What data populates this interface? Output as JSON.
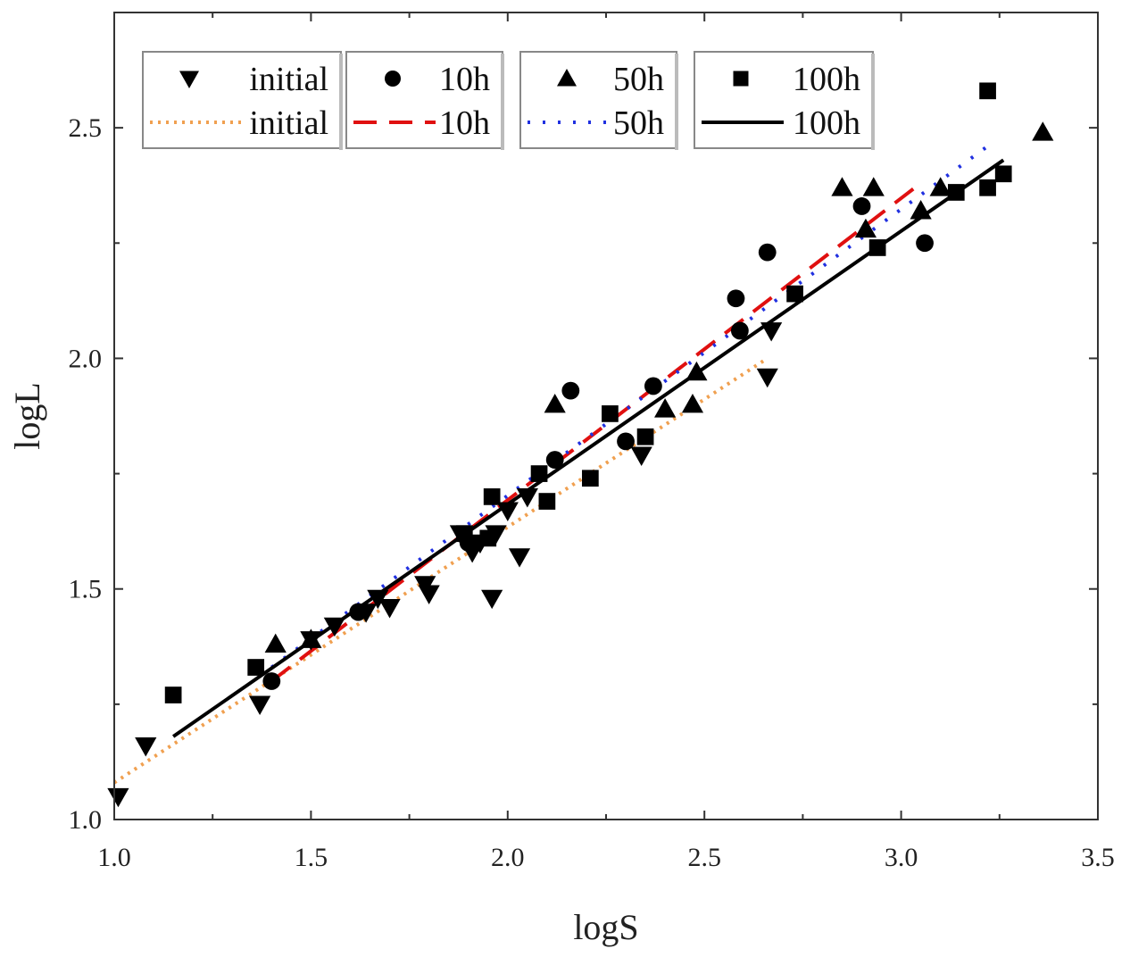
{
  "chart_data": {
    "type": "scatter",
    "title": "",
    "xlabel": "logS",
    "ylabel": "logL",
    "xlim": [
      1.0,
      3.5
    ],
    "ylim": [
      1.0,
      2.75
    ],
    "xticks": [
      "1.0",
      "1.5",
      "2.0",
      "2.5",
      "3.0",
      "3.5"
    ],
    "yticks": [
      "1.0",
      "1.5",
      "2.0",
      "2.5"
    ],
    "xtick_values": [
      1.0,
      1.5,
      2.0,
      2.5,
      3.0,
      3.5
    ],
    "ytick_values": [
      1.0,
      1.5,
      2.0,
      2.5
    ],
    "legend_position": "top",
    "series": [
      {
        "name": "initial",
        "marker": "triangle-down",
        "color": "#000000",
        "fit_label": "initial",
        "fit_color": "#f0a050",
        "fit_style": "dotted",
        "fit_x": [
          1.0,
          2.66
        ],
        "fit_y": [
          1.08,
          2.0
        ],
        "points": [
          [
            1.01,
            1.05
          ],
          [
            1.08,
            1.16
          ],
          [
            1.37,
            1.25
          ],
          [
            1.5,
            1.39
          ],
          [
            1.56,
            1.42
          ],
          [
            1.64,
            1.45
          ],
          [
            1.67,
            1.48
          ],
          [
            1.7,
            1.46
          ],
          [
            1.79,
            1.51
          ],
          [
            1.8,
            1.49
          ],
          [
            1.88,
            1.62
          ],
          [
            1.91,
            1.58
          ],
          [
            1.93,
            1.6
          ],
          [
            1.96,
            1.48
          ],
          [
            1.97,
            1.62
          ],
          [
            2.0,
            1.67
          ],
          [
            2.03,
            1.57
          ],
          [
            2.05,
            1.7
          ],
          [
            2.34,
            1.79
          ],
          [
            2.66,
            1.96
          ],
          [
            2.67,
            2.06
          ]
        ]
      },
      {
        "name": "10h",
        "marker": "circle",
        "color": "#000000",
        "fit_label": "10h",
        "fit_color": "#e01010",
        "fit_style": "dashed",
        "fit_x": [
          1.4,
          3.05
        ],
        "fit_y": [
          1.3,
          2.38
        ],
        "points": [
          [
            1.4,
            1.3
          ],
          [
            1.62,
            1.45
          ],
          [
            1.9,
            1.6
          ],
          [
            2.12,
            1.78
          ],
          [
            2.16,
            1.93
          ],
          [
            2.3,
            1.82
          ],
          [
            2.37,
            1.94
          ],
          [
            2.58,
            2.13
          ],
          [
            2.59,
            2.06
          ],
          [
            2.66,
            2.23
          ],
          [
            2.9,
            2.33
          ],
          [
            3.06,
            2.25
          ]
        ]
      },
      {
        "name": "50h",
        "marker": "triangle-up",
        "color": "#000000",
        "fit_label": "50h",
        "fit_color": "#2030e0",
        "fit_style": "dotted",
        "fit_x": [
          1.4,
          3.22
        ],
        "fit_y": [
          1.33,
          2.46
        ],
        "points": [
          [
            1.41,
            1.38
          ],
          [
            1.5,
            1.39
          ],
          [
            2.12,
            1.9
          ],
          [
            2.4,
            1.89
          ],
          [
            2.47,
            1.9
          ],
          [
            2.48,
            1.97
          ],
          [
            2.85,
            2.37
          ],
          [
            2.91,
            2.28
          ],
          [
            2.93,
            2.37
          ],
          [
            3.05,
            2.32
          ],
          [
            3.1,
            2.37
          ],
          [
            3.36,
            2.49
          ]
        ]
      },
      {
        "name": "100h",
        "marker": "square",
        "color": "#000000",
        "fit_label": "100h",
        "fit_color": "#000000",
        "fit_style": "solid",
        "fit_x": [
          1.15,
          3.26
        ],
        "fit_y": [
          1.18,
          2.43
        ],
        "points": [
          [
            1.15,
            1.27
          ],
          [
            1.36,
            1.33
          ],
          [
            1.89,
            1.62
          ],
          [
            1.95,
            1.61
          ],
          [
            1.96,
            1.7
          ],
          [
            2.08,
            1.75
          ],
          [
            2.1,
            1.69
          ],
          [
            2.21,
            1.74
          ],
          [
            2.26,
            1.88
          ],
          [
            2.35,
            1.83
          ],
          [
            2.73,
            2.14
          ],
          [
            2.94,
            2.24
          ],
          [
            3.14,
            2.36
          ],
          [
            3.22,
            2.37
          ],
          [
            3.22,
            2.58
          ],
          [
            3.26,
            2.4
          ]
        ]
      }
    ]
  }
}
